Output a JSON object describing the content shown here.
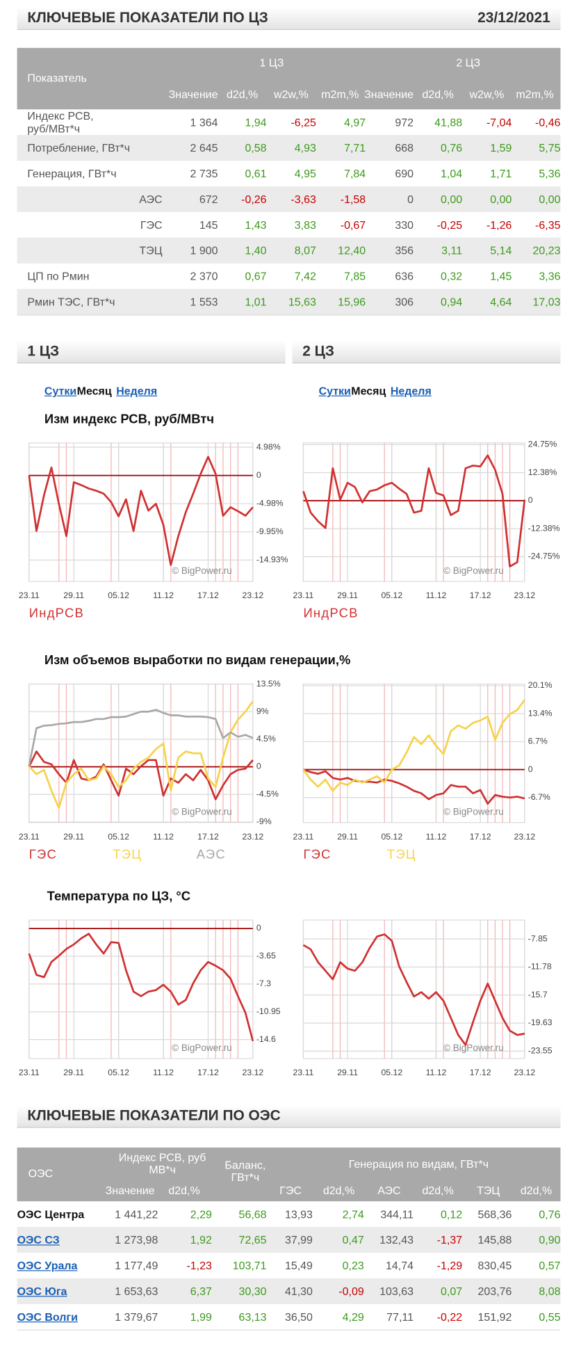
{
  "header": {
    "title": "КЛЮЧЕВЫЕ ПОКАЗАТЕЛИ ПО ЦЗ",
    "date": "23/12/2021"
  },
  "table1": {
    "header": "Показатель",
    "groups": [
      "1 ЦЗ",
      "2 ЦЗ"
    ],
    "columns": [
      "Значение",
      "d2d,%",
      "w2w,%",
      "m2m,%"
    ],
    "rows": [
      [
        "Индекс РСВ, руб/МВт*ч",
        "1 364",
        "1,94",
        "-6,25",
        "4,97",
        "972",
        "41,88",
        "-7,04",
        "-0,46"
      ],
      [
        "Потребление, ГВт*ч",
        "2 645",
        "0,58",
        "4,93",
        "7,71",
        "668",
        "0,76",
        "1,59",
        "5,75"
      ],
      [
        "Генерация, ГВт*ч",
        "2 735",
        "0,61",
        "4,95",
        "7,84",
        "690",
        "1,04",
        "1,71",
        "5,36"
      ],
      [
        "АЭС",
        "672",
        "-0,26",
        "-3,63",
        "-1,58",
        "0",
        "0,00",
        "0,00",
        "0,00"
      ],
      [
        "ГЭС",
        "145",
        "1,43",
        "3,83",
        "-0,67",
        "330",
        "-0,25",
        "-1,26",
        "-6,35"
      ],
      [
        "ТЭЦ",
        "1 900",
        "1,40",
        "8,07",
        "12,40",
        "356",
        "3,11",
        "5,14",
        "20,23"
      ],
      [
        "ЦП по Рмин",
        "2 370",
        "0,67",
        "7,42",
        "7,85",
        "636",
        "0,32",
        "1,45",
        "3,36"
      ],
      [
        "Рмин ТЭС, ГВт*ч",
        "1 553",
        "1,01",
        "15,63",
        "15,96",
        "306",
        "0,94",
        "4,64",
        "17,03"
      ]
    ]
  },
  "tabs": [
    "Сутки",
    "Месяц",
    "Неделя"
  ],
  "chart_data": [
    {
      "type": "line",
      "title": "Изм индекс РСВ, руб/МВтч",
      "annotation": "© BigPower.ru",
      "categories": [
        "23.11",
        null,
        null,
        null,
        null,
        null,
        "29.11",
        null,
        null,
        null,
        null,
        null,
        "05.12",
        null,
        null,
        null,
        null,
        null,
        "11.12",
        null,
        null,
        null,
        null,
        null,
        "17.12",
        null,
        null,
        null,
        null,
        null,
        "23.12"
      ],
      "series": [
        {
          "name": "ИндРСВ",
          "color": "#d03030",
          "values": [
            0,
            -9.8,
            -3.5,
            1.4,
            -5.0,
            -10.7,
            -1.2,
            -1.7,
            -2.3,
            -2.7,
            -3.2,
            -4.7,
            -7.2,
            -4.2,
            -9.8,
            -2.7,
            -6.2,
            -5.0,
            -8.7,
            -15.8,
            -10.7,
            -6.5,
            -3.2,
            0.3,
            3.3,
            0.3,
            -7.1,
            -5.6,
            -6.3,
            -7.1,
            -5.6
          ]
        }
      ],
      "ylim": [
        -18.7,
        5.74
      ],
      "yticks": [
        {
          "value": 4.98,
          "label": "4.98%"
        },
        0,
        {
          "value": -4.98,
          "label": "-4.98%"
        },
        {
          "value": -9.95,
          "label": "-9.95%"
        },
        {
          "value": -14.93,
          "label": "-14.93%"
        }
      ],
      "grid": true
    },
    {
      "type": "line",
      "annotation": "© BigPower.ru",
      "categories": [
        "23.11",
        null,
        null,
        null,
        null,
        null,
        "29.11",
        null,
        null,
        null,
        null,
        null,
        "05.12",
        null,
        null,
        null,
        null,
        null,
        "11.12",
        null,
        null,
        null,
        null,
        null,
        "17.12",
        null,
        null,
        null,
        null,
        null,
        "23.12"
      ],
      "series": [
        {
          "name": "ИндРСВ",
          "color": "#d03030",
          "values": [
            4.2,
            -5.3,
            -9.1,
            -12.1,
            14.3,
            0.4,
            7.9,
            6.0,
            -0.8,
            4.2,
            4.9,
            6.8,
            7.9,
            5.3,
            3.0,
            -5.3,
            -4.5,
            14.3,
            3.4,
            2.3,
            -6.4,
            -4.5,
            14.3,
            15.5,
            15.1,
            20.0,
            13.6,
            3.0,
            -29.1,
            -27.2,
            0.4
          ]
        }
      ],
      "ylim": [
        -35.7,
        25.5
      ],
      "yticks": [
        {
          "value": 24.75,
          "label": "24.75%"
        },
        {
          "value": 12.38,
          "label": "12.38%"
        },
        0,
        {
          "value": -12.38,
          "label": "-12.38%"
        },
        {
          "value": -24.75,
          "label": "-24.75%"
        }
      ],
      "grid": true
    },
    {
      "type": "line",
      "title": "Изм объемов выработки по видам генерации,%",
      "annotation": "© BigPower.ru",
      "categories": [
        "23.11",
        null,
        null,
        null,
        null,
        null,
        "29.11",
        null,
        null,
        null,
        null,
        null,
        "05.12",
        null,
        null,
        null,
        null,
        null,
        "11.12",
        null,
        null,
        null,
        null,
        null,
        "17.12",
        null,
        null,
        null,
        null,
        null,
        "23.12"
      ],
      "series": [
        {
          "name": "ГЭС",
          "color": "#d03030",
          "values": [
            0,
            2.5,
            0.8,
            0.4,
            -1.2,
            -2.6,
            1.1,
            -1.9,
            -2.2,
            -1.6,
            0.4,
            -2.2,
            -4.7,
            -0.3,
            -1.2,
            0.1,
            1.1,
            1.1,
            -4.7,
            -1.9,
            -2.6,
            -1.2,
            -2.2,
            -0.5,
            -2.2,
            -5.3,
            -3.0,
            -1.2,
            -0.5,
            -0.3,
            1.1
          ]
        },
        {
          "name": "ТЭЦ",
          "color": "#f6d24a",
          "values": [
            0.1,
            -1.2,
            -0.5,
            -3.9,
            -6.7,
            -2.6,
            -1.2,
            -0.3,
            -2.2,
            -1.9,
            0.1,
            -1.2,
            -3.3,
            -2.2,
            -0.3,
            0.8,
            1.5,
            2.9,
            3.8,
            -3.9,
            1.5,
            2.5,
            2.2,
            2.2,
            -1.9,
            -3.3,
            1.5,
            5.6,
            7.7,
            9.0,
            10.7
          ]
        },
        {
          "name": "АЭС",
          "color": "#a8a8a8",
          "values": [
            0.1,
            6.3,
            6.7,
            6.8,
            7.0,
            7.1,
            7.3,
            7.3,
            7.5,
            7.8,
            7.8,
            8.1,
            8.1,
            8.2,
            8.6,
            9.0,
            9.0,
            9.3,
            8.8,
            8.4,
            8.4,
            8.2,
            8.2,
            8.2,
            8.1,
            7.8,
            4.7,
            5.6,
            4.9,
            5.2,
            4.7
          ]
        }
      ],
      "ylim": [
        -9.1,
        13.5
      ],
      "yticks": [
        {
          "value": 13.5,
          "label": "13.5%"
        },
        {
          "value": 9,
          "label": "9%"
        },
        {
          "value": 4.5,
          "label": "4.5%"
        },
        0,
        {
          "value": -4.5,
          "label": "-4.5%"
        },
        {
          "value": -9,
          "label": "-9%"
        }
      ],
      "grid": true
    },
    {
      "type": "line",
      "annotation": "© BigPower.ru",
      "categories": [
        "23.11",
        null,
        null,
        null,
        null,
        null,
        "29.11",
        null,
        null,
        null,
        null,
        null,
        "05.12",
        null,
        null,
        null,
        null,
        null,
        "11.12",
        null,
        null,
        null,
        null,
        null,
        "17.12",
        null,
        null,
        null,
        null,
        null,
        "23.12"
      ],
      "series": [
        {
          "name": "ГЭС",
          "color": "#d03030",
          "values": [
            0,
            -0.6,
            -1.0,
            -0.4,
            -2.0,
            -2.4,
            -2.0,
            -2.7,
            -2.9,
            -2.9,
            -3.1,
            -2.4,
            -2.7,
            -3.3,
            -4.1,
            -5.1,
            -5.7,
            -7.1,
            -6.1,
            -5.7,
            -3.7,
            -4.1,
            -4.1,
            -5.7,
            -4.9,
            -8.2,
            -6.1,
            -6.5,
            -6.7,
            -6.5,
            -6.9
          ]
        },
        {
          "name": "ТЭЦ",
          "color": "#f6d24a",
          "values": [
            0,
            -2.4,
            -4.1,
            -2.4,
            -5.1,
            -3.1,
            -3.7,
            -2.4,
            -3.1,
            -2.4,
            -1.6,
            -3.1,
            0,
            1.0,
            4.1,
            7.8,
            6.1,
            8.2,
            5.7,
            3.7,
            9.2,
            10.6,
            9.8,
            11.2,
            11.8,
            12.7,
            7.1,
            11.2,
            13.3,
            14.3,
            16.7
          ]
        }
      ],
      "ylim": [
        -12.7,
        20.5
      ],
      "yticks": [
        {
          "value": 20.1,
          "label": "20.1%"
        },
        {
          "value": 13.4,
          "label": "13.4%"
        },
        {
          "value": 6.7,
          "label": "6.7%"
        },
        0,
        {
          "value": -6.7,
          "label": "-6.7%"
        }
      ],
      "grid": true
    },
    {
      "type": "line",
      "title": "Температура по ЦЗ, °C",
      "annotation": "© BigPower.ru",
      "categories": [
        "23.11",
        null,
        null,
        null,
        null,
        null,
        "29.11",
        null,
        null,
        null,
        null,
        null,
        "05.12",
        null,
        null,
        null,
        null,
        null,
        "11.12",
        null,
        null,
        null,
        null,
        null,
        "17.12",
        null,
        null,
        null,
        null,
        null,
        "23.12"
      ],
      "series": [
        {
          "color": "#d03030",
          "values": [
            -3.3,
            -6.1,
            -6.4,
            -4.4,
            -3.6,
            -2.7,
            -2.1,
            -1.3,
            -0.7,
            -2.1,
            -3.3,
            -1.8,
            -1.9,
            -5.5,
            -8.3,
            -8.9,
            -8.3,
            -8.1,
            -7.4,
            -8.3,
            -10.0,
            -9.4,
            -7.2,
            -5.5,
            -4.4,
            -4.9,
            -5.5,
            -6.6,
            -8.9,
            -11.1,
            -14.8
          ]
        }
      ],
      "ylim": [
        -17.1,
        1.1
      ],
      "yticks": [
        0,
        -3.65,
        -7.3,
        -10.95,
        -14.6
      ],
      "grid": true
    },
    {
      "type": "line",
      "annotation": "© BigPower.ru",
      "categories": [
        "23.11",
        null,
        null,
        null,
        null,
        null,
        "29.11",
        null,
        null,
        null,
        null,
        null,
        "05.12",
        null,
        null,
        null,
        null,
        null,
        "11.12",
        null,
        null,
        null,
        null,
        null,
        "17.12",
        null,
        null,
        null,
        null,
        null,
        "23.12"
      ],
      "series": [
        {
          "color": "#d03030",
          "values": [
            -8.7,
            -9.3,
            -11.1,
            -12.3,
            -13.5,
            -11.1,
            -12.0,
            -12.3,
            -11.1,
            -9.1,
            -7.5,
            -7.2,
            -8.1,
            -11.7,
            -13.9,
            -15.9,
            -15.3,
            -16.2,
            -15.3,
            -16.5,
            -18.9,
            -21.3,
            -22.7,
            -19.5,
            -16.5,
            -14.1,
            -16.5,
            -18.9,
            -20.7,
            -21.3,
            -21.1
          ]
        }
      ],
      "ylim": [
        -24.6,
        -5.2
      ],
      "yticks": [
        -7.85,
        -11.78,
        -15.7,
        -19.63,
        -23.55
      ],
      "grid": true
    }
  ],
  "section2": "КЛЮЧЕВЫЕ ПОКАЗАТЕЛИ ПО ОЭС",
  "table2": {
    "header": {
      "region": "ОЭС",
      "price": "Индекс РСВ, руб МВ*ч",
      "balance": "Баланс, ГВт*ч",
      "generation": "Генерация по видам, ГВт*ч"
    },
    "columns": [
      "Значение",
      "d2d,%",
      "ГЭС",
      "d2d,%",
      "АЭС",
      "d2d,%",
      "ТЭЦ",
      "d2d,%"
    ],
    "rows": [
      [
        "ОЭС Центра",
        "1 441,22",
        "2,29",
        "56,68",
        "13,93",
        "2,74",
        "344,11",
        "0,12",
        "568,36",
        "0,76"
      ],
      [
        "ОЭС СЗ",
        "1 273,98",
        "1,92",
        "72,65",
        "37,99",
        "0,47",
        "132,43",
        "-1,37",
        "145,88",
        "0,90"
      ],
      [
        "ОЭС Урала",
        "1 177,49",
        "-1,23",
        "103,71",
        "15,49",
        "0,23",
        "14,74",
        "-1,29",
        "830,45",
        "0,57"
      ],
      [
        "ОЭС Юга",
        "1 653,63",
        "6,37",
        "30,30",
        "41,30",
        "-0,09",
        "103,63",
        "0,07",
        "203,76",
        "8,08"
      ],
      [
        "ОЭС Волги",
        "1 379,67",
        "1,99",
        "63,13",
        "36,50",
        "4,29",
        "77,11",
        "-0,22",
        "151,92",
        "0,55"
      ]
    ]
  }
}
